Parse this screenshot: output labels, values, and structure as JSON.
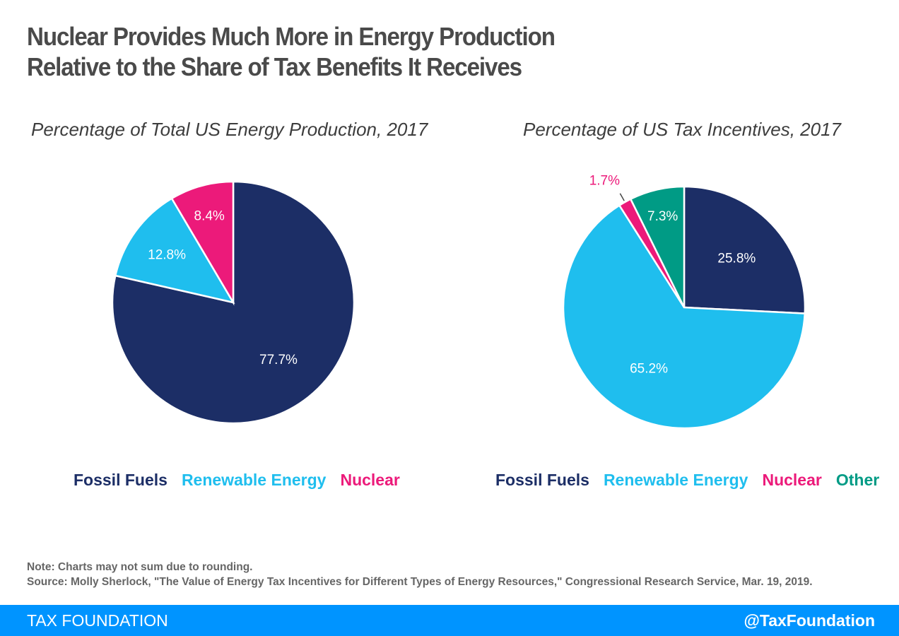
{
  "title_line1": "Nuclear Provides Much More in Energy Production",
  "title_line2": "Relative to the Share of Tax Benefits It Receives",
  "colors": {
    "fossil": "#1c2e66",
    "renewable": "#1fbeee",
    "nuclear": "#ec1a7a",
    "other": "#009b85",
    "footer": "#0094ff"
  },
  "chart_data": [
    {
      "type": "pie",
      "title": "Percentage of Total US Energy Production, 2017",
      "categories": [
        "Fossil Fuels",
        "Renewable Energy",
        "Nuclear"
      ],
      "values": [
        77.7,
        12.8,
        8.4
      ],
      "labels": [
        "77.7%",
        "12.8%",
        "8.4%"
      ],
      "legend": "bottom"
    },
    {
      "type": "pie",
      "title": "Percentage of US Tax Incentives, 2017",
      "categories": [
        "Fossil Fuels",
        "Renewable Energy",
        "Nuclear",
        "Other"
      ],
      "values": [
        25.8,
        65.2,
        1.7,
        7.3
      ],
      "labels": [
        "25.8%",
        "65.2%",
        "1.7%",
        "7.3%"
      ],
      "legend": "bottom"
    }
  ],
  "note": "Note: Charts may not sum due to rounding.",
  "source": "Source: Molly Sherlock, \"The Value of Energy Tax Incentives for Different Types of Energy Resources,\" Congressional Research Service, Mar. 19, 2019.",
  "footer": {
    "brand": "TAX FOUNDATION",
    "handle": "@TaxFoundation"
  }
}
